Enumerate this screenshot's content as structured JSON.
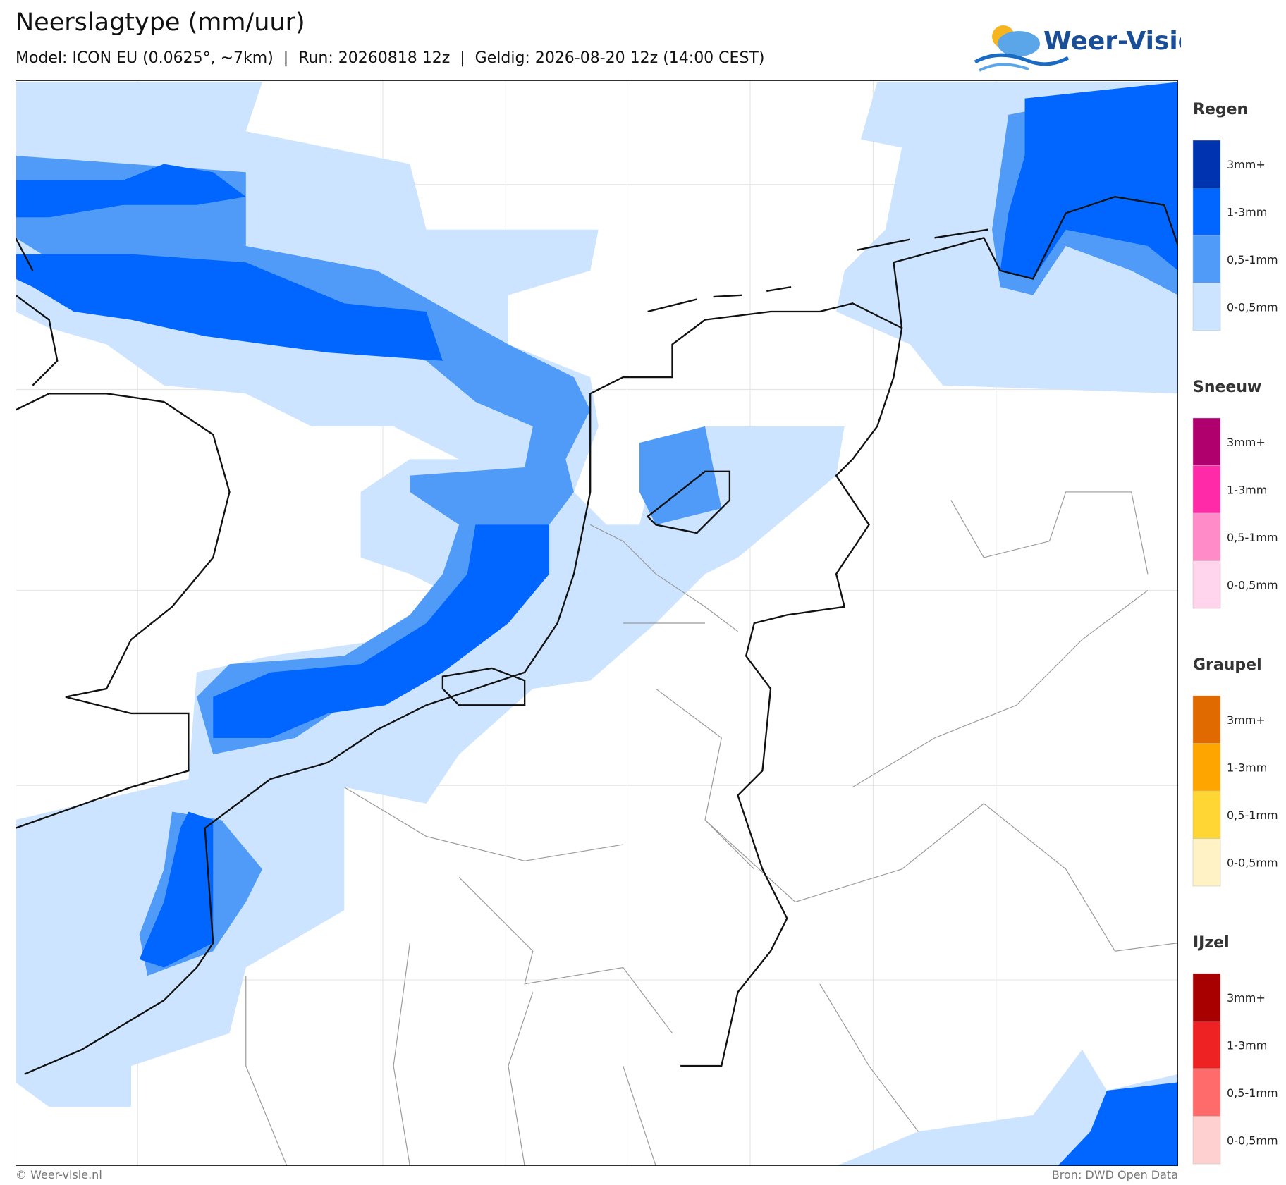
{
  "header": {
    "title": "Neerslagtype (mm/uur)",
    "subtitle": "Model: ICON EU (0.0625°, ~7km)  |  Run: 20260818 12z  |  Geldig: 2026-08-20 12z (14:00 CEST)",
    "logo": "Weer-Visie"
  },
  "legend": [
    {
      "title": "Regen",
      "items": [
        {
          "label": "3mm+",
          "color": "#0033b0"
        },
        {
          "label": "1-3mm",
          "color": "#0066ff"
        },
        {
          "label": "0,5-1mm",
          "color": "#4f9bf7"
        },
        {
          "label": "0-0,5mm",
          "color": "#cce4ff"
        }
      ]
    },
    {
      "title": "Sneeuw",
      "items": [
        {
          "label": "3mm+",
          "color": "#b0006e"
        },
        {
          "label": "1-3mm",
          "color": "#ff2aa8"
        },
        {
          "label": "0,5-1mm",
          "color": "#ff8cc8"
        },
        {
          "label": "0-0,5mm",
          "color": "#ffd4ec"
        }
      ]
    },
    {
      "title": "Graupel",
      "items": [
        {
          "label": "3mm+",
          "color": "#e06a00"
        },
        {
          "label": "1-3mm",
          "color": "#ffa500"
        },
        {
          "label": "0,5-1mm",
          "color": "#ffd633"
        },
        {
          "label": "0-0,5mm",
          "color": "#fff2c4"
        }
      ]
    },
    {
      "title": "IJzel",
      "items": [
        {
          "label": "3mm+",
          "color": "#a80000"
        },
        {
          "label": "1-3mm",
          "color": "#ee2222"
        },
        {
          "label": "0,5-1mm",
          "color": "#ff6b6b"
        },
        {
          "label": "0-0,5mm",
          "color": "#ffd0d0"
        }
      ]
    }
  ],
  "footer": {
    "left": "© Weer-visie.nl",
    "right": "Bron: DWD Open Data"
  }
}
